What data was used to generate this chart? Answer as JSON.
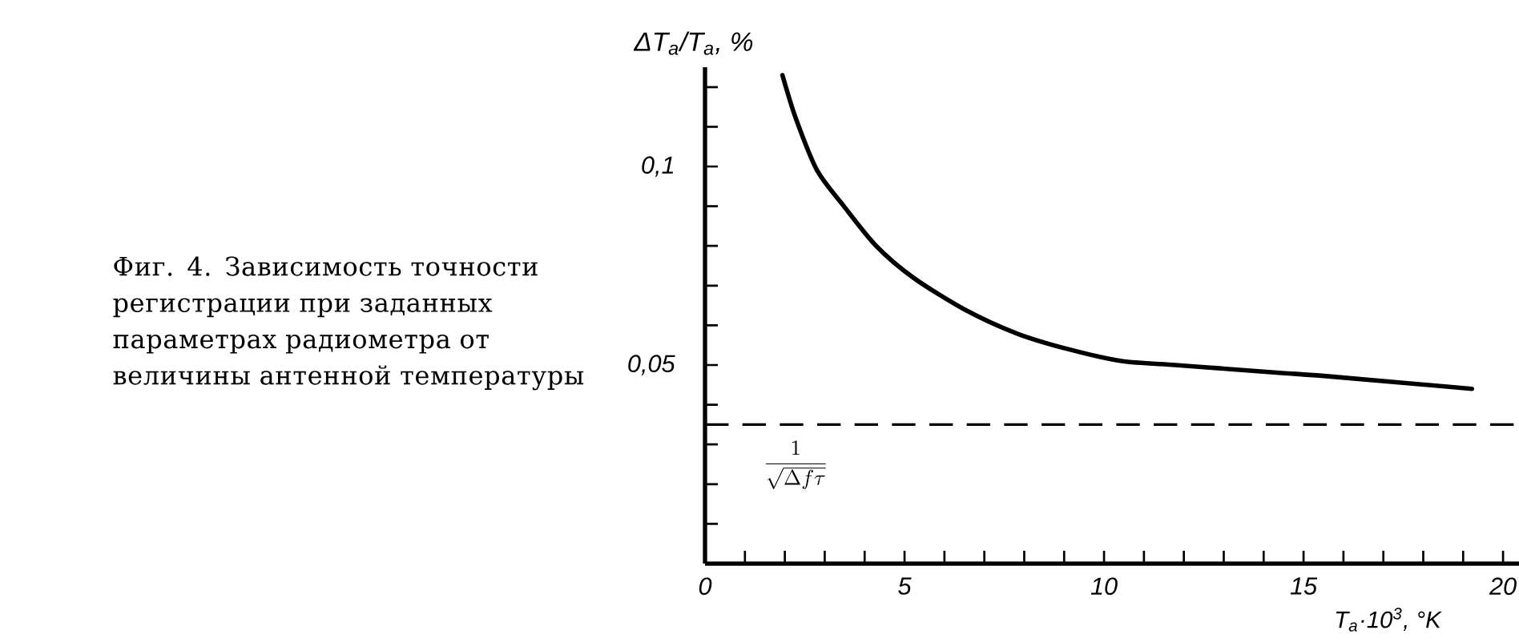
{
  "chart_data": {
    "type": "line",
    "annotations": [
      "Фиг. 4. Зависимость точности регистрации при заданных параметрах радиометра от величины антенной температуры"
    ],
    "xlabel": "T$_{а}$·10$^{3}$, °K",
    "ylabel": "ΔT$_{а}$/T$_{а}$, %",
    "x": [
      1.94,
      2.28,
      2.81,
      3.48,
      4.29,
      5.22,
      6.5,
      7.8,
      9.1,
      10.44,
      11.78,
      13.12,
      14.46,
      15.8,
      19.22
    ],
    "values": [
      0.123,
      0.112,
      0.099,
      0.09,
      0.08,
      0.072,
      0.064,
      0.058,
      0.054,
      0.051,
      0.05,
      0.049,
      0.048,
      0.047,
      0.044
    ],
    "color": "#000000",
    "xlim": [
      0,
      20.4
    ],
    "ylim": [
      0,
      0.125
    ],
    "xticks": [
      0,
      {
        "value": 1,
        "label": null
      },
      {
        "value": 2,
        "label": null
      },
      {
        "value": 3,
        "label": null
      },
      {
        "value": 4,
        "label": null
      },
      5,
      {
        "value": 6,
        "label": null
      },
      {
        "value": 7,
        "label": null
      },
      {
        "value": 8,
        "label": null
      },
      {
        "value": 9,
        "label": null
      },
      10,
      {
        "value": 11,
        "label": null
      },
      {
        "value": 12,
        "label": null
      },
      {
        "value": 13,
        "label": null
      },
      {
        "value": 14,
        "label": null
      },
      15,
      {
        "value": 16,
        "label": null
      },
      {
        "value": 17,
        "label": null
      },
      {
        "value": 18,
        "label": null
      },
      {
        "value": 19,
        "label": null
      },
      20
    ],
    "yticks": [
      {
        "value": 0.01,
        "label": null
      },
      {
        "value": 0.02,
        "label": null
      },
      {
        "value": 0.03,
        "label": null
      },
      {
        "value": 0.04,
        "label": null
      },
      {
        "value": 0.05,
        "label": "0,05"
      },
      {
        "value": 0.06,
        "label": null
      },
      {
        "value": 0.07,
        "label": null
      },
      {
        "value": 0.08,
        "label": null
      },
      {
        "value": 0.09,
        "label": null
      },
      {
        "value": 0.1,
        "label": "0,1"
      },
      {
        "value": 0.11,
        "label": null
      },
      {
        "value": 0.12,
        "label": null
      }
    ],
    "ref_lines": [
      {
        "axis": "y",
        "value": 0.035,
        "label": "\\frac{1}{\\sqrt{\\Delta f\\tau}}",
        "line_style": "dashed",
        "color": "#000000"
      }
    ]
  }
}
